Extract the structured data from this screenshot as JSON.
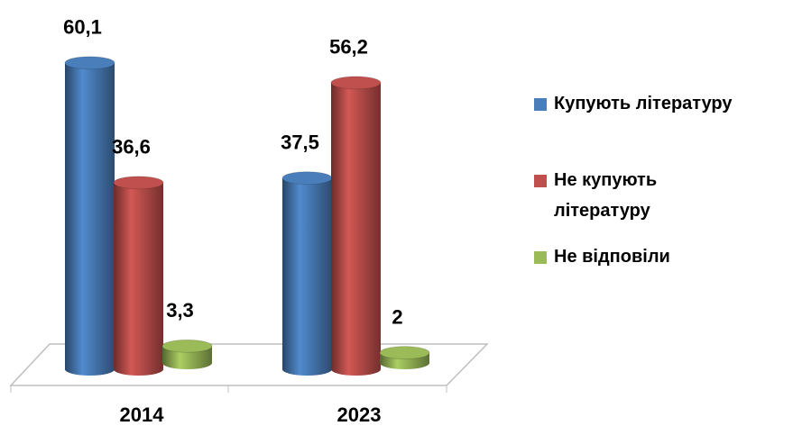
{
  "chart_data": {
    "type": "bar3d",
    "categories": [
      "2014",
      "2023"
    ],
    "series": [
      {
        "name": "Купують літературу",
        "color": "#4a7ebb",
        "values": [
          60.1,
          37.5
        ],
        "value_labels": [
          "60,1",
          "37,5"
        ]
      },
      {
        "name": "Не купують літературу",
        "color": "#c0504d",
        "values": [
          36.6,
          56.2
        ],
        "value_labels": [
          "36,6",
          "56,2"
        ]
      },
      {
        "name": "Не відповіли",
        "color": "#9bbb59",
        "values": [
          3.3,
          2
        ],
        "value_labels": [
          "3,3",
          "2"
        ]
      }
    ],
    "legend": "right"
  }
}
